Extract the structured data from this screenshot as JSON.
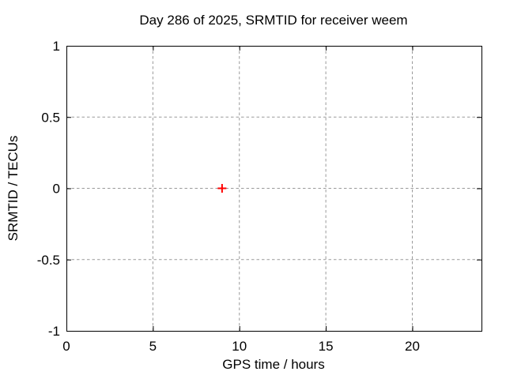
{
  "chart_data": {
    "type": "scatter",
    "title": "Day 286 of 2025, SRMTID for receiver weem",
    "xlabel": "GPS time / hours",
    "ylabel": "SRMTID / TECUs",
    "xlim": [
      0,
      24
    ],
    "ylim": [
      -1,
      1
    ],
    "xticks": {
      "values": [
        0,
        5,
        10,
        15,
        20
      ],
      "labels": [
        "0",
        "5",
        "10",
        "15",
        "20"
      ]
    },
    "yticks": {
      "values": [
        -1,
        -0.5,
        0,
        0.5,
        1
      ],
      "labels": [
        "-1",
        "-0.5",
        "0",
        "0.5",
        "1"
      ]
    },
    "grid": true,
    "grid_color": "#9a9a9a",
    "axis_color": "#000000",
    "background_color": "#ffffff",
    "legend": "none",
    "series": [
      {
        "marker": "plus",
        "marker_size": 11,
        "color": "#ff0000",
        "points": [
          {
            "x": 9,
            "y": 0
          }
        ]
      }
    ]
  }
}
